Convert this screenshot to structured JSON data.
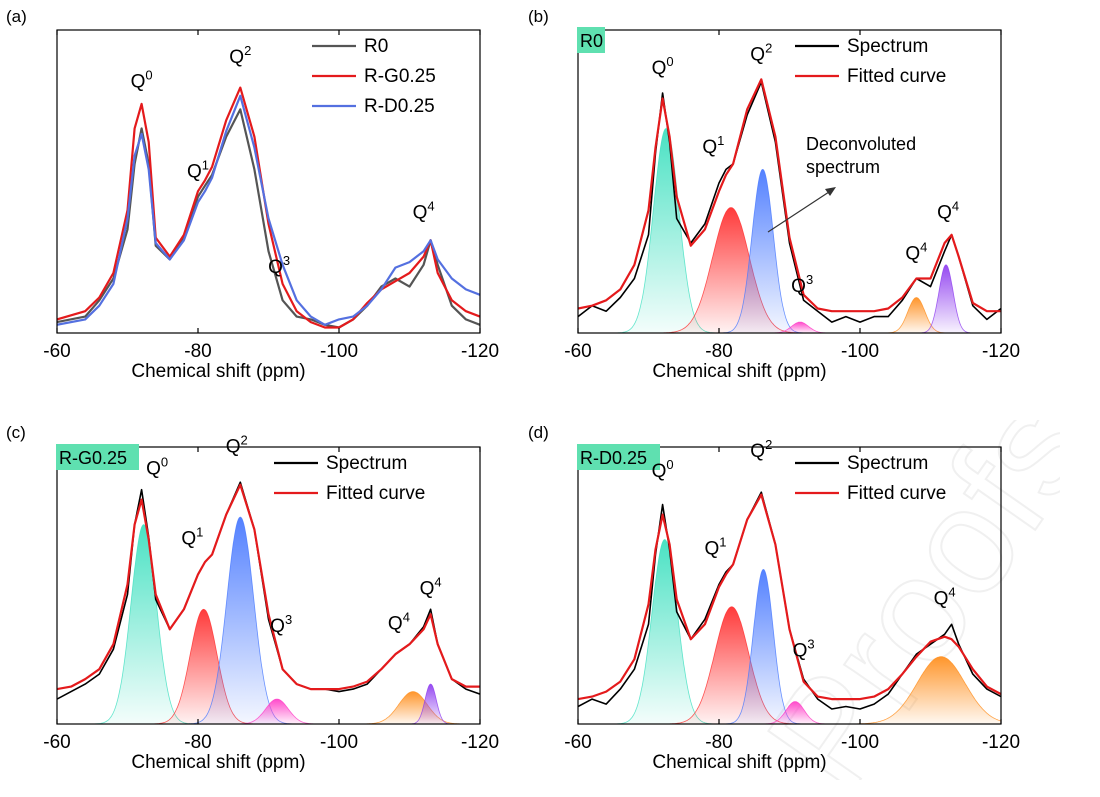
{
  "watermark": "Proofs",
  "chart_data": [
    {
      "panel": "(a)",
      "type": "line",
      "xlabel": "Chemical shift (ppm)",
      "ylabel": "",
      "xlim": [
        -60,
        -120
      ],
      "x_ticks": [
        -60,
        -80,
        -100,
        -120
      ],
      "y_ticks": false,
      "legend_position": "top-right",
      "series": [
        {
          "name": "R0",
          "color": "#555555",
          "x": [
            -60,
            -64,
            -66,
            -68,
            -70,
            -71,
            -72,
            -73,
            -74,
            -76,
            -78,
            -80,
            -81,
            -82,
            -84,
            -86,
            -88,
            -90,
            -92,
            -94,
            -96,
            -98,
            -100,
            -102,
            -104,
            -106,
            -108,
            -110,
            -112,
            -113,
            -114,
            -116,
            -118,
            -120
          ],
          "y": [
            0.04,
            0.06,
            0.12,
            0.2,
            0.38,
            0.62,
            0.75,
            0.62,
            0.32,
            0.27,
            0.35,
            0.5,
            0.54,
            0.58,
            0.72,
            0.82,
            0.6,
            0.3,
            0.12,
            0.06,
            0.05,
            0.03,
            0.02,
            0.05,
            0.1,
            0.17,
            0.2,
            0.17,
            0.25,
            0.34,
            0.25,
            0.1,
            0.05,
            0.03
          ]
        },
        {
          "name": "R-G0.25",
          "color": "#e41a1c",
          "x": [
            -60,
            -64,
            -66,
            -68,
            -70,
            -71,
            -72,
            -73,
            -74,
            -76,
            -78,
            -80,
            -81,
            -82,
            -84,
            -86,
            -88,
            -90,
            -92,
            -94,
            -96,
            -98,
            -100,
            -102,
            -104,
            -106,
            -108,
            -110,
            -112,
            -113,
            -114,
            -116,
            -118,
            -120
          ],
          "y": [
            0.05,
            0.08,
            0.13,
            0.22,
            0.45,
            0.75,
            0.84,
            0.7,
            0.35,
            0.28,
            0.36,
            0.52,
            0.56,
            0.61,
            0.78,
            0.9,
            0.72,
            0.4,
            0.18,
            0.08,
            0.04,
            0.02,
            0.02,
            0.05,
            0.11,
            0.16,
            0.19,
            0.22,
            0.28,
            0.34,
            0.22,
            0.12,
            0.08,
            0.06
          ]
        },
        {
          "name": "R-D0.25",
          "color": "#5470e0",
          "x": [
            -60,
            -64,
            -66,
            -68,
            -70,
            -71,
            -72,
            -73,
            -74,
            -76,
            -78,
            -80,
            -81,
            -82,
            -84,
            -86,
            -88,
            -90,
            -92,
            -94,
            -96,
            -98,
            -100,
            -102,
            -104,
            -106,
            -108,
            -110,
            -112,
            -113,
            -114,
            -116,
            -118,
            -120
          ],
          "y": [
            0.03,
            0.05,
            0.1,
            0.18,
            0.42,
            0.65,
            0.73,
            0.6,
            0.33,
            0.27,
            0.34,
            0.48,
            0.52,
            0.57,
            0.74,
            0.87,
            0.68,
            0.42,
            0.25,
            0.12,
            0.06,
            0.03,
            0.05,
            0.06,
            0.1,
            0.16,
            0.24,
            0.26,
            0.3,
            0.34,
            0.27,
            0.2,
            0.16,
            0.14
          ]
        }
      ],
      "annotations": [
        {
          "base": "Q",
          "sup": "0",
          "x": -72,
          "y": 0.9
        },
        {
          "base": "Q",
          "sup": "1",
          "x": -80,
          "y": 0.57
        },
        {
          "base": "Q",
          "sup": "2",
          "x": -86,
          "y": 0.99
        },
        {
          "base": "Q",
          "sup": "3",
          "x": -91.5,
          "y": 0.22
        },
        {
          "base": "Q",
          "sup": "4",
          "x": -112,
          "y": 0.42
        }
      ]
    },
    {
      "panel": "(b)",
      "sample_label": "R0",
      "type": "line",
      "xlabel": "Chemical shift (ppm)",
      "ylabel": "",
      "xlim": [
        -60,
        -120
      ],
      "x_ticks": [
        -60,
        -80,
        -100,
        -120
      ],
      "y_ticks": false,
      "legend_position": "top-right",
      "baseline": 0.08,
      "series": [
        {
          "name": "Spectrum",
          "color": "#000000",
          "x": [
            -60,
            -62,
            -64,
            -66,
            -68,
            -70,
            -71,
            -72,
            -73,
            -74,
            -76,
            -78,
            -80,
            -81,
            -82,
            -84,
            -86,
            -88,
            -90,
            -92,
            -94,
            -96,
            -98,
            -100,
            -102,
            -104,
            -106,
            -108,
            -110,
            -112,
            -113,
            -114,
            -116,
            -118,
            -120
          ],
          "y": [
            0.06,
            0.1,
            0.08,
            0.13,
            0.2,
            0.36,
            0.66,
            0.88,
            0.7,
            0.42,
            0.33,
            0.4,
            0.55,
            0.6,
            0.62,
            0.8,
            0.92,
            0.7,
            0.33,
            0.12,
            0.08,
            0.04,
            0.06,
            0.04,
            0.06,
            0.06,
            0.12,
            0.2,
            0.17,
            0.3,
            0.36,
            0.28,
            0.1,
            0.05,
            0.09
          ]
        },
        {
          "name": "Fitted curve",
          "color": "#e41a1c",
          "x": [
            -60,
            -62,
            -64,
            -66,
            -68,
            -70,
            -71,
            -72,
            -73,
            -74,
            -76,
            -78,
            -80,
            -81,
            -82,
            -84,
            -86,
            -88,
            -90,
            -92,
            -94,
            -96,
            -98,
            -100,
            -102,
            -104,
            -106,
            -108,
            -110,
            -112,
            -113,
            -114,
            -116,
            -118,
            -120
          ],
          "y": [
            0.09,
            0.1,
            0.12,
            0.16,
            0.25,
            0.45,
            0.68,
            0.86,
            0.72,
            0.5,
            0.32,
            0.38,
            0.52,
            0.58,
            0.62,
            0.82,
            0.93,
            0.72,
            0.35,
            0.14,
            0.09,
            0.08,
            0.08,
            0.08,
            0.08,
            0.09,
            0.13,
            0.2,
            0.2,
            0.33,
            0.36,
            0.28,
            0.11,
            0.08,
            0.08
          ]
        }
      ],
      "components": [
        {
          "peak": "Q0",
          "center": -72.5,
          "height": 0.75,
          "sigma": 1.8,
          "color": "#40e0c0"
        },
        {
          "peak": "Q1",
          "center": -81.7,
          "height": 0.46,
          "sigma": 2.6,
          "color": "#ff3030"
        },
        {
          "peak": "Q2",
          "center": -86.2,
          "height": 0.6,
          "sigma": 1.5,
          "color": "#4a7aff"
        },
        {
          "peak": "Q3",
          "center": -91.5,
          "height": 0.04,
          "sigma": 1.2,
          "color": "#ff40c8"
        },
        {
          "peak": "Q4a",
          "center": -108,
          "height": 0.13,
          "sigma": 1.2,
          "color": "#ff9020"
        },
        {
          "peak": "Q4b",
          "center": -112.2,
          "height": 0.25,
          "sigma": 1.0,
          "color": "#9040f0"
        }
      ],
      "annotations": [
        {
          "base": "Q",
          "sup": "0",
          "x": -72,
          "y": 0.95
        },
        {
          "base": "Q",
          "sup": "1",
          "x": -79.2,
          "y": 0.66
        },
        {
          "base": "Q",
          "sup": "2",
          "x": -86,
          "y": 1.0
        },
        {
          "base": "Q",
          "sup": "3",
          "x": -91.8,
          "y": 0.15
        },
        {
          "base": "Q",
          "sup": "4",
          "x": -108,
          "y": 0.27
        },
        {
          "base": "Q",
          "sup": "4",
          "x": -112.5,
          "y": 0.42
        }
      ],
      "arrow_text": "Deconvoluted spectrum"
    },
    {
      "panel": "(c)",
      "sample_label": "R-G0.25",
      "type": "line",
      "xlabel": "Chemical shift (ppm)",
      "ylabel": "",
      "xlim": [
        -60,
        -120
      ],
      "x_ticks": [
        -60,
        -80,
        -100,
        -120
      ],
      "y_ticks": false,
      "legend_position": "top-right",
      "baseline": 0.13,
      "series": [
        {
          "name": "Spectrum",
          "color": "#000000",
          "x": [
            -60,
            -62,
            -64,
            -66,
            -68,
            -70,
            -71,
            -72,
            -73,
            -74,
            -76,
            -78,
            -80,
            -81,
            -82,
            -84,
            -86,
            -88,
            -90,
            -92,
            -94,
            -96,
            -98,
            -100,
            -102,
            -104,
            -106,
            -108,
            -110,
            -112,
            -113,
            -114,
            -116,
            -118,
            -120
          ],
          "y": [
            0.1,
            0.13,
            0.16,
            0.2,
            0.3,
            0.52,
            0.8,
            0.94,
            0.75,
            0.5,
            0.38,
            0.46,
            0.6,
            0.65,
            0.68,
            0.84,
            0.97,
            0.78,
            0.42,
            0.22,
            0.16,
            0.14,
            0.14,
            0.13,
            0.14,
            0.16,
            0.22,
            0.28,
            0.32,
            0.39,
            0.46,
            0.32,
            0.18,
            0.14,
            0.12
          ]
        },
        {
          "name": "Fitted curve",
          "color": "#e41a1c",
          "x": [
            -60,
            -62,
            -64,
            -66,
            -68,
            -70,
            -71,
            -72,
            -73,
            -74,
            -76,
            -78,
            -80,
            -81,
            -82,
            -84,
            -86,
            -88,
            -90,
            -92,
            -94,
            -96,
            -98,
            -100,
            -102,
            -104,
            -106,
            -108,
            -110,
            -112,
            -113,
            -114,
            -116,
            -118,
            -120
          ],
          "y": [
            0.14,
            0.15,
            0.18,
            0.22,
            0.32,
            0.56,
            0.8,
            0.9,
            0.74,
            0.52,
            0.38,
            0.46,
            0.6,
            0.65,
            0.68,
            0.84,
            0.96,
            0.78,
            0.44,
            0.22,
            0.16,
            0.14,
            0.14,
            0.14,
            0.15,
            0.17,
            0.22,
            0.28,
            0.32,
            0.38,
            0.44,
            0.32,
            0.18,
            0.15,
            0.15
          ]
        }
      ],
      "components": [
        {
          "peak": "Q0",
          "center": -72.3,
          "height": 0.8,
          "sigma": 1.8,
          "color": "#40e0c0"
        },
        {
          "peak": "Q1",
          "center": -80.8,
          "height": 0.46,
          "sigma": 1.9,
          "color": "#ff3030"
        },
        {
          "peak": "Q2",
          "center": -86,
          "height": 0.83,
          "sigma": 1.9,
          "color": "#4a7aff"
        },
        {
          "peak": "Q3",
          "center": -91.2,
          "height": 0.1,
          "sigma": 1.6,
          "color": "#ff40c8"
        },
        {
          "peak": "Q4a",
          "center": -110.5,
          "height": 0.13,
          "sigma": 2.0,
          "color": "#ff9020"
        },
        {
          "peak": "Q4b",
          "center": -113,
          "height": 0.16,
          "sigma": 0.8,
          "color": "#9040f0"
        }
      ],
      "annotations": [
        {
          "base": "Q",
          "sup": "0",
          "x": -74.2,
          "y": 1.0
        },
        {
          "base": "Q",
          "sup": "1",
          "x": -79.2,
          "y": 0.72
        },
        {
          "base": "Q",
          "sup": "2",
          "x": -85.5,
          "y": 1.09
        },
        {
          "base": "Q",
          "sup": "3",
          "x": -91.8,
          "y": 0.37
        },
        {
          "base": "Q",
          "sup": "4",
          "x": -108.5,
          "y": 0.38
        },
        {
          "base": "Q",
          "sup": "4",
          "x": -113,
          "y": 0.52
        }
      ]
    },
    {
      "panel": "(d)",
      "sample_label": "R-D0.25",
      "type": "line",
      "xlabel": "Chemical shift (ppm)",
      "ylabel": "",
      "xlim": [
        -60,
        -120
      ],
      "x_ticks": [
        -60,
        -80,
        -100,
        -120
      ],
      "y_ticks": false,
      "legend_position": "top-right",
      "baseline": 0.1,
      "series": [
        {
          "name": "Spectrum",
          "color": "#000000",
          "x": [
            -60,
            -62,
            -64,
            -66,
            -68,
            -70,
            -71,
            -72,
            -73,
            -74,
            -76,
            -78,
            -80,
            -81,
            -82,
            -84,
            -86,
            -88,
            -90,
            -92,
            -94,
            -96,
            -98,
            -100,
            -102,
            -104,
            -106,
            -108,
            -110,
            -112,
            -113,
            -114,
            -116,
            -118,
            -120
          ],
          "y": [
            0.07,
            0.1,
            0.08,
            0.14,
            0.22,
            0.4,
            0.68,
            0.88,
            0.7,
            0.45,
            0.34,
            0.42,
            0.56,
            0.61,
            0.64,
            0.82,
            0.93,
            0.72,
            0.38,
            0.18,
            0.1,
            0.06,
            0.07,
            0.06,
            0.08,
            0.12,
            0.2,
            0.28,
            0.32,
            0.36,
            0.4,
            0.32,
            0.2,
            0.14,
            0.11
          ]
        },
        {
          "name": "Fitted curve",
          "color": "#e41a1c",
          "x": [
            -60,
            -62,
            -64,
            -66,
            -68,
            -70,
            -71,
            -72,
            -73,
            -74,
            -76,
            -78,
            -80,
            -81,
            -82,
            -84,
            -86,
            -88,
            -90,
            -92,
            -94,
            -96,
            -98,
            -100,
            -102,
            -104,
            -106,
            -108,
            -110,
            -112,
            -113,
            -114,
            -116,
            -118,
            -120
          ],
          "y": [
            0.1,
            0.11,
            0.13,
            0.17,
            0.26,
            0.48,
            0.7,
            0.84,
            0.72,
            0.5,
            0.34,
            0.4,
            0.55,
            0.6,
            0.64,
            0.82,
            0.92,
            0.72,
            0.38,
            0.17,
            0.11,
            0.1,
            0.1,
            0.1,
            0.11,
            0.14,
            0.2,
            0.27,
            0.33,
            0.35,
            0.34,
            0.31,
            0.22,
            0.15,
            0.12
          ]
        }
      ],
      "components": [
        {
          "peak": "Q0",
          "center": -72.3,
          "height": 0.74,
          "sigma": 1.8,
          "color": "#40e0c0"
        },
        {
          "peak": "Q1",
          "center": -81.8,
          "height": 0.47,
          "sigma": 2.4,
          "color": "#ff3030"
        },
        {
          "peak": "Q2",
          "center": -86.3,
          "height": 0.62,
          "sigma": 1.4,
          "color": "#4a7aff"
        },
        {
          "peak": "Q3",
          "center": -90.8,
          "height": 0.09,
          "sigma": 1.3,
          "color": "#ff40c8"
        },
        {
          "peak": "Q4",
          "center": -111.5,
          "height": 0.27,
          "sigma": 3.4,
          "color": "#ff9020"
        }
      ],
      "annotations": [
        {
          "base": "Q",
          "sup": "0",
          "x": -72,
          "y": 0.99
        },
        {
          "base": "Q",
          "sup": "1",
          "x": -79.5,
          "y": 0.68
        },
        {
          "base": "Q",
          "sup": "2",
          "x": -86,
          "y": 1.07
        },
        {
          "base": "Q",
          "sup": "3",
          "x": -92,
          "y": 0.27
        },
        {
          "base": "Q",
          "sup": "4",
          "x": -112,
          "y": 0.48
        }
      ]
    }
  ]
}
